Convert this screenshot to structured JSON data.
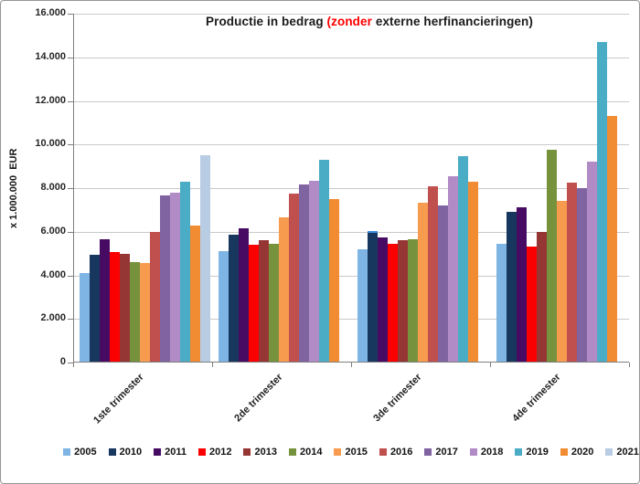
{
  "frame": {
    "background": "#FFFFFF",
    "border_color": "#949494"
  },
  "chart_data": {
    "type": "bar",
    "title_plain": "Productie in bedrag (zonder externe herfinancieringen)",
    "title_parts": [
      {
        "text": "Productie in bedrag ",
        "color": "#1A1A1A"
      },
      {
        "text": "(zonder",
        "color": "#FF0000"
      },
      {
        "text": " externe herfinancieringen)",
        "color": "#1A1A1A"
      }
    ],
    "ylabel": "x 1.000.000  EUR",
    "ylim": [
      0,
      16000
    ],
    "y_tick_step": 2000,
    "y_tick_labels": [
      "16.000",
      "14.000",
      "12.000",
      "10.000",
      "8.000",
      "6.000",
      "4.000",
      "2.000",
      "0"
    ],
    "grid": true,
    "legend_position": "bottom",
    "categories": [
      "1ste trimester",
      "2de trimester",
      "3de trimester",
      "4de trimester"
    ],
    "series": [
      {
        "name": "2005",
        "color": "#7FB5E4",
        "values": [
          4100,
          5100,
          5200,
          5450
        ]
      },
      {
        "name": "2010",
        "color": "#17375E",
        "values": [
          4950,
          5850,
          6050,
          6900
        ]
      },
      {
        "name": "2011",
        "color": "#470B63",
        "values": [
          5650,
          6150,
          5750,
          7100
        ]
      },
      {
        "name": "2012",
        "color": "#FB0000",
        "values": [
          5050,
          5400,
          5450,
          5300
        ]
      },
      {
        "name": "2013",
        "color": "#963634",
        "values": [
          5000,
          5600,
          5600,
          6000
        ]
      },
      {
        "name": "2014",
        "color": "#76923C",
        "values": [
          4600,
          5450,
          5650,
          9750
        ]
      },
      {
        "name": "2015",
        "color": "#F79C4F",
        "values": [
          4550,
          6650,
          7350,
          7400
        ]
      },
      {
        "name": "2016",
        "color": "#C0504D",
        "values": [
          6000,
          7750,
          8100,
          8250
        ]
      },
      {
        "name": "2017",
        "color": "#8064A2",
        "values": [
          7650,
          8150,
          7200,
          8000
        ]
      },
      {
        "name": "2018",
        "color": "#B18BC5",
        "values": [
          7800,
          8350,
          8550,
          9200
        ]
      },
      {
        "name": "2019",
        "color": "#4BACC6",
        "values": [
          8300,
          9300,
          9450,
          14700
        ]
      },
      {
        "name": "2020",
        "color": "#F28C33",
        "values": [
          6300,
          7500,
          8300,
          11300
        ]
      },
      {
        "name": "2021",
        "color": "#B8CCE4",
        "values": [
          9500,
          null,
          null,
          null
        ]
      }
    ],
    "selected_point": {
      "series": "2010",
      "category_index": 2,
      "highlight_color": "#3E8EDE"
    }
  }
}
